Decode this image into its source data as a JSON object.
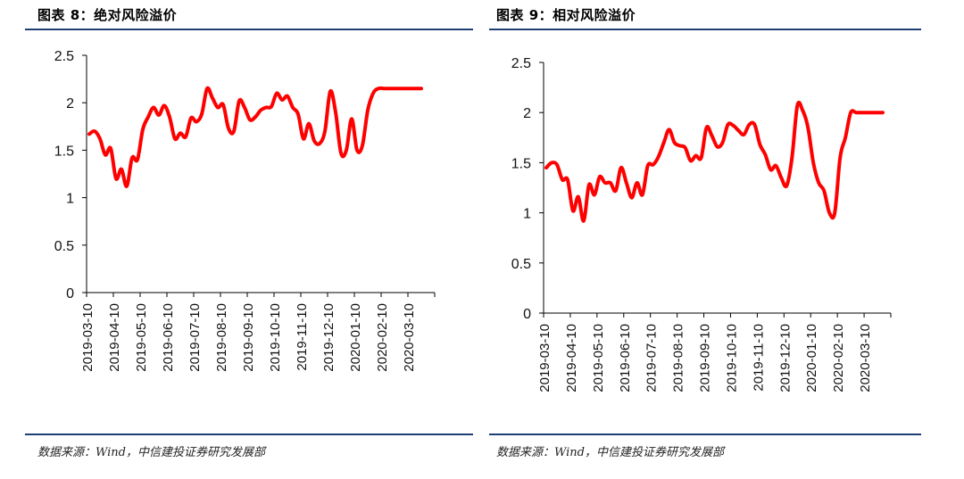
{
  "figures": [
    {
      "title": "图表 8：绝对风险溢价",
      "source": "数据来源：Wind，中信建投证券研究发展部"
    },
    {
      "title": "图表 9：相对风险溢价",
      "source": "数据来源：Wind，中信建投证券研究发展部"
    }
  ],
  "chart_data": [
    {
      "type": "line",
      "title": "图表 8：绝对风险溢价",
      "xlabel": "",
      "ylabel": "",
      "ylim": [
        0,
        2.5
      ],
      "yticks": [
        "0",
        "0.5",
        "1",
        "1.5",
        "2",
        "2.5"
      ],
      "xtick_labels": [
        "2019-03-10",
        "2019-04-10",
        "2019-05-10",
        "2019-06-10",
        "2019-07-10",
        "2019-08-10",
        "2019-09-10",
        "2019-10-10",
        "2019-11-10",
        "2019-12-10",
        "2020-01-10",
        "2020-02-10",
        "2020-03-10"
      ],
      "grid": false,
      "color": "#ff0000",
      "series": [
        {
          "x": [
            0,
            0.2,
            0.4,
            0.6,
            0.8,
            1.0,
            1.2,
            1.4,
            1.6,
            1.8,
            2.0,
            2.2,
            2.4,
            2.6,
            2.8,
            3.0,
            3.2,
            3.4,
            3.6,
            3.8,
            4.0,
            4.2,
            4.4,
            4.6,
            4.8,
            5.0,
            5.2,
            5.4,
            5.6,
            5.8,
            6.0,
            6.2,
            6.4,
            6.6,
            6.8,
            7.0,
            7.2,
            7.4,
            7.6,
            7.8,
            8.0,
            8.2,
            8.4,
            8.6,
            8.8,
            9.0,
            9.2,
            9.4,
            9.6,
            9.8,
            10.0,
            10.2,
            10.4,
            10.6,
            10.8,
            11.0,
            11.2,
            11.4,
            11.6,
            11.8,
            12.0,
            12.2,
            12.4
          ],
          "values": [
            1.67,
            1.7,
            1.62,
            1.45,
            1.52,
            1.2,
            1.3,
            1.12,
            1.42,
            1.4,
            1.72,
            1.85,
            1.95,
            1.87,
            1.97,
            1.85,
            1.62,
            1.68,
            1.64,
            1.84,
            1.8,
            1.88,
            2.15,
            2.05,
            1.95,
            1.98,
            1.73,
            1.7,
            2.02,
            1.95,
            1.82,
            1.85,
            1.92,
            1.95,
            1.96,
            2.1,
            2.03,
            2.07,
            1.95,
            1.88,
            1.62,
            1.78,
            1.6,
            1.57,
            1.7,
            2.12,
            1.9,
            1.47,
            1.5,
            1.83,
            1.5,
            1.55,
            1.92,
            2.1,
            2.15,
            2.15,
            2.15,
            2.15,
            2.15,
            2.15,
            2.15,
            2.15,
            2.15
          ]
        }
      ]
    },
    {
      "type": "line",
      "title": "图表 9：相对风险溢价",
      "xlabel": "",
      "ylabel": "",
      "ylim": [
        0,
        2.5
      ],
      "yticks": [
        "0",
        "0.5",
        "1",
        "1.5",
        "2",
        "2.5"
      ],
      "xtick_labels": [
        "2019-03-10",
        "2019-04-10",
        "2019-05-10",
        "2019-06-10",
        "2019-07-10",
        "2019-08-10",
        "2019-09-10",
        "2019-10-10",
        "2019-11-10",
        "2019-12-10",
        "2020-01-10",
        "2020-02-10",
        "2020-03-10"
      ],
      "grid": false,
      "color": "#ff0000",
      "series": [
        {
          "x": [
            0,
            0.2,
            0.4,
            0.6,
            0.8,
            1.0,
            1.2,
            1.4,
            1.6,
            1.8,
            2.0,
            2.2,
            2.4,
            2.6,
            2.8,
            3.0,
            3.2,
            3.4,
            3.6,
            3.8,
            4.0,
            4.2,
            4.4,
            4.6,
            4.8,
            5.0,
            5.2,
            5.4,
            5.6,
            5.8,
            6.0,
            6.2,
            6.4,
            6.6,
            6.8,
            7.0,
            7.2,
            7.4,
            7.6,
            7.8,
            8.0,
            8.2,
            8.4,
            8.6,
            8.8,
            9.0,
            9.2,
            9.4,
            9.6,
            9.8,
            10.0,
            10.2,
            10.4,
            10.6,
            10.8,
            11.0,
            11.2,
            11.4,
            11.6,
            11.8,
            12.0,
            12.2,
            12.4,
            12.6
          ],
          "values": [
            1.45,
            1.5,
            1.48,
            1.33,
            1.33,
            1.02,
            1.16,
            0.92,
            1.28,
            1.18,
            1.36,
            1.3,
            1.3,
            1.22,
            1.45,
            1.3,
            1.15,
            1.3,
            1.18,
            1.47,
            1.48,
            1.56,
            1.7,
            1.83,
            1.7,
            1.67,
            1.65,
            1.52,
            1.57,
            1.55,
            1.85,
            1.77,
            1.66,
            1.7,
            1.88,
            1.87,
            1.82,
            1.78,
            1.88,
            1.88,
            1.68,
            1.58,
            1.43,
            1.47,
            1.35,
            1.27,
            1.55,
            2.07,
            2.02,
            1.85,
            1.5,
            1.3,
            1.22,
            1.0,
            1.0,
            1.55,
            1.75,
            2.0,
            2.0,
            2.0,
            2.0,
            2.0,
            2.0,
            2.0
          ]
        }
      ]
    }
  ]
}
